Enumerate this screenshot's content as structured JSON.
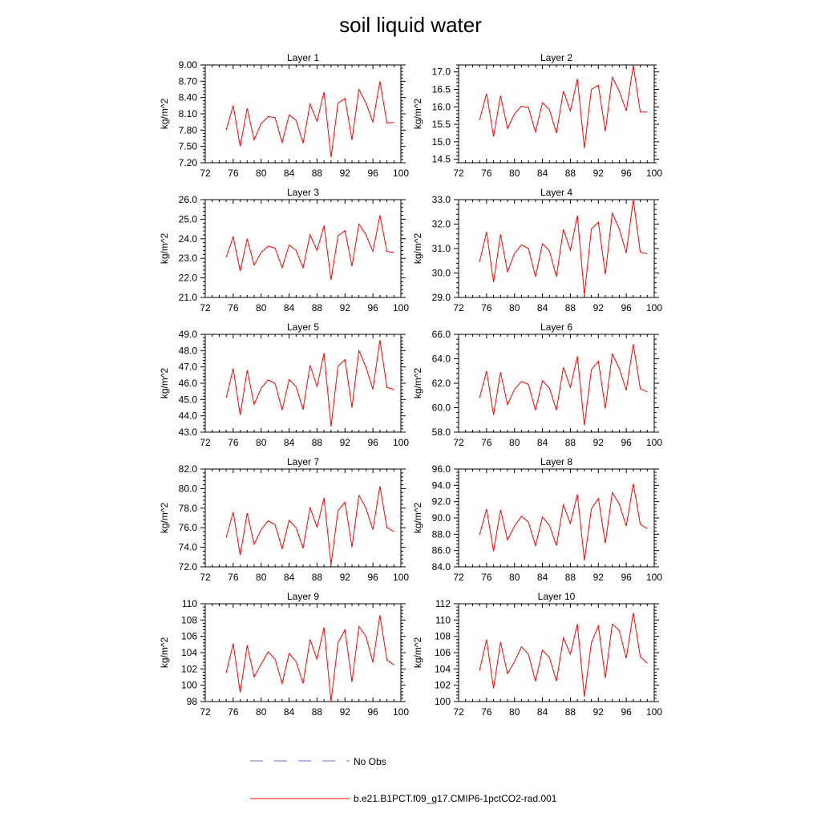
{
  "title": "soil liquid water",
  "legend": {
    "obs_label": "No Obs",
    "obs_color": "#6f6fd8",
    "model_label": "b.e21.B1PCT.f09_g17.CMIP6-1pctCO2-rad.001",
    "model_color": "#ff0000"
  },
  "chart_data": [
    {
      "type": "line",
      "title": "Layer 1",
      "ylabel": "kg/m^2",
      "xlim": [
        72,
        100
      ],
      "xticks": [
        72,
        76,
        80,
        84,
        88,
        92,
        96,
        100
      ],
      "ylim": [
        7.2,
        9.0
      ],
      "yticks": [
        "7.20",
        "7.50",
        "7.80",
        "8.10",
        "8.40",
        "8.70",
        "9.00"
      ],
      "series": [
        {
          "x": [
            75,
            76,
            77,
            78,
            79,
            80,
            81,
            82,
            83,
            84,
            85,
            86,
            87,
            88,
            89,
            90,
            91,
            92,
            93,
            94,
            95,
            96,
            97,
            98,
            99
          ],
          "values": [
            7.8,
            8.25,
            7.5,
            8.2,
            7.62,
            7.92,
            8.05,
            8.03,
            7.57,
            8.08,
            7.98,
            7.56,
            8.28,
            7.96,
            8.5,
            7.3,
            8.3,
            8.38,
            7.62,
            8.55,
            8.3,
            7.95,
            8.7,
            7.93,
            7.94
          ]
        }
      ]
    },
    {
      "type": "line",
      "title": "Layer 2",
      "ylabel": "kg/m^2",
      "xlim": [
        72,
        100
      ],
      "xticks": [
        72,
        76,
        80,
        84,
        88,
        92,
        96,
        100
      ],
      "ylim": [
        14.4,
        17.2
      ],
      "yticks": [
        "14.5",
        "15.0",
        "15.5",
        "16.0",
        "16.5",
        "17.0"
      ],
      "series": [
        {
          "x": [
            75,
            76,
            77,
            78,
            79,
            80,
            81,
            82,
            83,
            84,
            85,
            86,
            87,
            88,
            89,
            90,
            91,
            92,
            93,
            94,
            95,
            96,
            97,
            98,
            99
          ],
          "values": [
            15.62,
            16.38,
            15.15,
            16.32,
            15.38,
            15.8,
            16.02,
            15.98,
            15.28,
            16.12,
            15.92,
            15.25,
            16.45,
            15.88,
            16.8,
            14.82,
            16.5,
            16.62,
            15.3,
            16.85,
            16.45,
            15.88,
            17.18,
            15.85,
            15.85
          ]
        }
      ]
    },
    {
      "type": "line",
      "title": "Layer 3",
      "ylabel": "kg/m^2",
      "xlim": [
        72,
        100
      ],
      "xticks": [
        72,
        76,
        80,
        84,
        88,
        92,
        96,
        100
      ],
      "ylim": [
        21.0,
        26.0
      ],
      "yticks": [
        "21.0",
        "22.0",
        "23.0",
        "24.0",
        "25.0",
        "26.0"
      ],
      "series": [
        {
          "x": [
            75,
            76,
            77,
            78,
            79,
            80,
            81,
            82,
            83,
            84,
            85,
            86,
            87,
            88,
            89,
            90,
            91,
            92,
            93,
            94,
            95,
            96,
            97,
            98,
            99
          ],
          "values": [
            23.05,
            24.1,
            22.35,
            24.0,
            22.65,
            23.3,
            23.62,
            23.52,
            22.52,
            23.68,
            23.4,
            22.52,
            24.2,
            23.4,
            24.68,
            21.9,
            24.15,
            24.42,
            22.6,
            24.75,
            24.2,
            23.35,
            25.2,
            23.35,
            23.3
          ]
        }
      ]
    },
    {
      "type": "line",
      "title": "Layer 4",
      "ylabel": "kg/m^2",
      "xlim": [
        72,
        100
      ],
      "xticks": [
        72,
        76,
        80,
        84,
        88,
        92,
        96,
        100
      ],
      "ylim": [
        29.0,
        33.0
      ],
      "yticks": [
        "29.0",
        "30.0",
        "31.0",
        "32.0",
        "33.0"
      ],
      "series": [
        {
          "x": [
            75,
            76,
            77,
            78,
            79,
            80,
            81,
            82,
            83,
            84,
            85,
            86,
            87,
            88,
            89,
            90,
            91,
            92,
            93,
            94,
            95,
            96,
            97,
            98,
            99
          ],
          "values": [
            30.45,
            31.68,
            29.62,
            31.58,
            30.05,
            30.8,
            31.15,
            31.0,
            29.85,
            31.2,
            30.9,
            29.85,
            31.78,
            30.92,
            32.35,
            29.1,
            31.8,
            32.08,
            29.95,
            32.45,
            31.8,
            30.82,
            33.0,
            30.85,
            30.78
          ]
        }
      ]
    },
    {
      "type": "line",
      "title": "Layer 5",
      "ylabel": "kg/m^2",
      "xlim": [
        72,
        100
      ],
      "xticks": [
        72,
        76,
        80,
        84,
        88,
        92,
        96,
        100
      ],
      "ylim": [
        43.0,
        49.0
      ],
      "yticks": [
        "43.0",
        "44.0",
        "45.0",
        "46.0",
        "47.0",
        "48.0",
        "49.0"
      ],
      "series": [
        {
          "x": [
            75,
            76,
            77,
            78,
            79,
            80,
            81,
            82,
            83,
            84,
            85,
            86,
            87,
            88,
            89,
            90,
            91,
            92,
            93,
            94,
            95,
            96,
            97,
            98,
            99
          ],
          "values": [
            45.1,
            46.9,
            44.05,
            46.8,
            44.7,
            45.7,
            46.2,
            45.98,
            44.35,
            46.22,
            45.8,
            44.38,
            47.1,
            45.8,
            47.85,
            43.35,
            47.05,
            47.45,
            44.5,
            48.0,
            47.0,
            45.62,
            48.65,
            45.75,
            45.6
          ]
        }
      ]
    },
    {
      "type": "line",
      "title": "Layer 6",
      "ylabel": "kg/m^2",
      "xlim": [
        72,
        100
      ],
      "xticks": [
        72,
        76,
        80,
        84,
        88,
        92,
        96,
        100
      ],
      "ylim": [
        58.0,
        66.0
      ],
      "yticks": [
        "58.0",
        "60.0",
        "62.0",
        "64.0",
        "66.0"
      ],
      "series": [
        {
          "x": [
            75,
            76,
            77,
            78,
            79,
            80,
            81,
            82,
            83,
            84,
            85,
            86,
            87,
            88,
            89,
            90,
            91,
            92,
            93,
            94,
            95,
            96,
            97,
            98,
            99
          ],
          "values": [
            60.8,
            63.0,
            59.4,
            62.9,
            60.25,
            61.5,
            62.15,
            61.9,
            59.8,
            62.2,
            61.6,
            59.8,
            63.3,
            61.65,
            64.2,
            58.55,
            63.1,
            63.8,
            59.95,
            64.4,
            63.2,
            61.42,
            65.2,
            61.55,
            61.3
          ]
        }
      ]
    },
    {
      "type": "line",
      "title": "Layer 7",
      "ylabel": "kg/m^2",
      "xlim": [
        72,
        100
      ],
      "xticks": [
        72,
        76,
        80,
        84,
        88,
        92,
        96,
        100
      ],
      "ylim": [
        72.0,
        82.0
      ],
      "yticks": [
        "72.0",
        "74.0",
        "76.0",
        "78.0",
        "80.0",
        "82.0"
      ],
      "series": [
        {
          "x": [
            75,
            76,
            77,
            78,
            79,
            80,
            81,
            82,
            83,
            84,
            85,
            86,
            87,
            88,
            89,
            90,
            91,
            92,
            93,
            94,
            95,
            96,
            97,
            98,
            99
          ],
          "values": [
            75.0,
            77.6,
            73.2,
            77.5,
            74.3,
            75.8,
            76.7,
            76.3,
            73.85,
            76.75,
            76.0,
            73.9,
            78.05,
            76.05,
            79.05,
            72.25,
            77.75,
            78.6,
            74.0,
            79.3,
            78.0,
            75.8,
            80.25,
            76.0,
            75.6
          ]
        }
      ]
    },
    {
      "type": "line",
      "title": "Layer 8",
      "ylabel": "kg/m^2",
      "xlim": [
        72,
        100
      ],
      "xticks": [
        72,
        76,
        80,
        84,
        88,
        92,
        96,
        100
      ],
      "ylim": [
        84.0,
        96.0
      ],
      "yticks": [
        "84.0",
        "86.0",
        "88.0",
        "90.0",
        "92.0",
        "94.0",
        "96.0"
      ],
      "series": [
        {
          "x": [
            75,
            76,
            77,
            78,
            79,
            80,
            81,
            82,
            83,
            84,
            85,
            86,
            87,
            88,
            89,
            90,
            91,
            92,
            93,
            94,
            95,
            96,
            97,
            98,
            99
          ],
          "values": [
            87.9,
            91.1,
            85.9,
            91.0,
            87.3,
            89.0,
            90.2,
            89.5,
            86.6,
            90.1,
            89.1,
            86.6,
            91.6,
            89.3,
            92.9,
            84.8,
            91.1,
            92.4,
            86.9,
            93.1,
            91.7,
            89.0,
            94.2,
            89.2,
            88.7
          ]
        }
      ]
    },
    {
      "type": "line",
      "title": "Layer 9",
      "ylabel": "kg/m^2",
      "xlim": [
        72,
        100
      ],
      "xticks": [
        72,
        76,
        80,
        84,
        88,
        92,
        96,
        100
      ],
      "ylim": [
        98,
        110
      ],
      "yticks": [
        "98",
        "100",
        "102",
        "104",
        "106",
        "108",
        "110"
      ],
      "series": [
        {
          "x": [
            75,
            76,
            77,
            78,
            79,
            80,
            81,
            82,
            83,
            84,
            85,
            86,
            87,
            88,
            89,
            90,
            91,
            92,
            93,
            94,
            95,
            96,
            97,
            98,
            99
          ],
          "values": [
            101.5,
            105.1,
            99.1,
            104.9,
            101.0,
            102.6,
            104.1,
            103.2,
            100.2,
            103.9,
            102.9,
            100.2,
            105.6,
            103.2,
            107.1,
            98.0,
            105.2,
            106.8,
            100.4,
            107.2,
            106.0,
            102.8,
            108.6,
            103.1,
            102.5
          ]
        }
      ]
    },
    {
      "type": "line",
      "title": "Layer 10",
      "ylabel": "kg/m^2",
      "xlim": [
        72,
        100
      ],
      "xticks": [
        72,
        76,
        80,
        84,
        88,
        92,
        96,
        100
      ],
      "ylim": [
        100,
        112
      ],
      "yticks": [
        "100",
        "102",
        "104",
        "106",
        "108",
        "110",
        "112"
      ],
      "series": [
        {
          "x": [
            75,
            76,
            77,
            78,
            79,
            80,
            81,
            82,
            83,
            84,
            85,
            86,
            87,
            88,
            89,
            90,
            91,
            92,
            93,
            94,
            95,
            96,
            97,
            98,
            99
          ],
          "values": [
            103.8,
            107.6,
            101.6,
            107.3,
            103.4,
            104.9,
            106.7,
            105.8,
            102.5,
            106.3,
            105.4,
            102.5,
            107.8,
            105.8,
            109.5,
            100.6,
            107.2,
            109.3,
            102.9,
            109.5,
            108.7,
            105.3,
            110.9,
            105.5,
            104.7
          ]
        }
      ]
    }
  ]
}
